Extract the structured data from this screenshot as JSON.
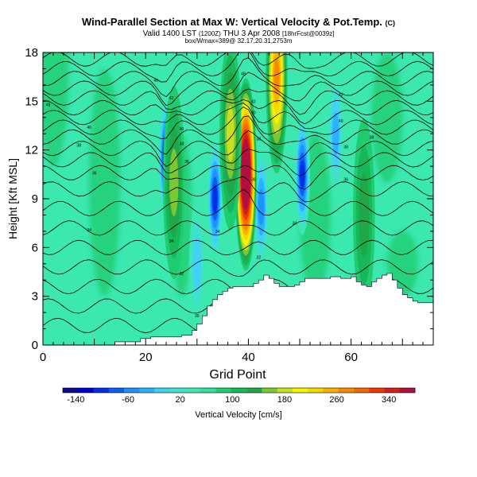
{
  "title": {
    "main": "Wind-Parallel Section at Max W: Vertical Velocity & Pot.Temp.",
    "copyright": "(C)",
    "valid": "Valid 1400 LST",
    "valid_utc": "(1200Z)",
    "date": "THU 3 Apr 2008",
    "forecast": "[18hrFcst@0039z]",
    "line3": "box/Wmax=389@ 32.17,20.31,2753m"
  },
  "chart_data": {
    "type": "heatmap",
    "xlabel": "Grid Point",
    "ylabel": "Height [Kft MSL]",
    "xlim": [
      0,
      76
    ],
    "ylim": [
      0,
      18
    ],
    "xticks": [
      0,
      20,
      40,
      60
    ],
    "yticks": [
      0,
      3,
      6,
      9,
      12,
      15,
      18
    ],
    "colorbar": {
      "label": "Vertical Velocity [cm/s]",
      "range": [
        -160,
        380
      ],
      "tick_values": [
        -140,
        -60,
        20,
        100,
        180,
        260,
        340
      ],
      "colors": [
        "#0b0b8f",
        "#0000cd",
        "#0030e6",
        "#0a60f2",
        "#1e90ff",
        "#29b3ff",
        "#3fd2f5",
        "#40e0d0",
        "#3ae8b0",
        "#2fe294",
        "#20cc70",
        "#16b85a",
        "#20a848",
        "#7cc830",
        "#c8e020",
        "#f5f500",
        "#f5d800",
        "#f5b000",
        "#f58a00",
        "#f56800",
        "#ee3a00",
        "#d41e1e",
        "#b01040"
      ],
      "step": 20
    },
    "terrain_top_kft": [
      [
        0,
        0
      ],
      [
        13,
        0
      ],
      [
        14,
        0.2
      ],
      [
        18,
        0.2
      ],
      [
        19,
        0.4
      ],
      [
        21,
        0.5
      ],
      [
        25,
        0.5
      ],
      [
        27,
        0.6
      ],
      [
        29,
        0.9
      ],
      [
        30,
        1.3
      ],
      [
        31,
        1.8
      ],
      [
        32,
        2.4
      ],
      [
        33,
        2.8
      ],
      [
        34,
        3.1
      ],
      [
        35,
        3.3
      ],
      [
        36,
        3.5
      ],
      [
        37,
        3.6
      ],
      [
        40,
        3.6
      ],
      [
        41,
        3.8
      ],
      [
        42,
        4.0
      ],
      [
        43,
        4.3
      ],
      [
        44,
        4.1
      ],
      [
        45,
        3.8
      ],
      [
        46,
        3.6
      ],
      [
        49,
        3.7
      ],
      [
        50,
        3.9
      ],
      [
        51,
        4.1
      ],
      [
        56,
        4.2
      ],
      [
        58,
        4.1
      ],
      [
        60,
        4.2
      ],
      [
        61,
        3.9
      ],
      [
        62,
        3.7
      ],
      [
        63,
        3.6
      ],
      [
        64,
        3.9
      ],
      [
        65,
        4.1
      ],
      [
        66,
        4.3
      ],
      [
        67,
        4.4
      ],
      [
        68,
        4.0
      ],
      [
        69,
        3.5
      ],
      [
        70,
        3.1
      ],
      [
        71,
        2.9
      ],
      [
        72,
        2.7
      ],
      [
        73,
        2.6
      ],
      [
        75,
        2.6
      ]
    ],
    "updraft_cores": [
      {
        "x": 39.5,
        "z_kft": 10.5,
        "w": 380
      },
      {
        "x": 45.5,
        "z_kft": 16.5,
        "w": 200
      },
      {
        "x": 36.5,
        "z_kft": 13.0,
        "w": 120
      },
      {
        "x": 25.5,
        "z_kft": 10.0,
        "w": 110
      },
      {
        "x": 62.5,
        "z_kft": 8.0,
        "w": 90
      }
    ],
    "downdraft_cores": [
      {
        "x": 24.0,
        "z_kft": 11.5,
        "w": -140
      },
      {
        "x": 33.5,
        "z_kft": 9.0,
        "w": -120
      },
      {
        "x": 50.5,
        "z_kft": 10.5,
        "w": -130
      },
      {
        "x": 42.5,
        "z_kft": 8.5,
        "w": -80
      },
      {
        "x": 57.0,
        "z_kft": 13.0,
        "w": -60
      },
      {
        "x": 30.0,
        "z_kft": 5.0,
        "w": -50
      }
    ],
    "theta_contour_labels": [
      {
        "x": 1.0,
        "z_kft": 14.8,
        "text": "48"
      },
      {
        "x": 22.0,
        "z_kft": 16.3,
        "text": "45"
      },
      {
        "x": 25.0,
        "z_kft": 15.2,
        "text": "42"
      },
      {
        "x": 9.0,
        "z_kft": 13.4,
        "text": "40"
      },
      {
        "x": 7.0,
        "z_kft": 12.3,
        "text": "38"
      },
      {
        "x": 10.0,
        "z_kft": 10.6,
        "text": "36"
      },
      {
        "x": 27.0,
        "z_kft": 13.3,
        "text": "40"
      },
      {
        "x": 27.0,
        "z_kft": 12.4,
        "text": "38"
      },
      {
        "x": 28.0,
        "z_kft": 11.3,
        "text": "36"
      },
      {
        "x": 9.0,
        "z_kft": 7.1,
        "text": "34"
      },
      {
        "x": 25.0,
        "z_kft": 6.4,
        "text": "34"
      },
      {
        "x": 27.0,
        "z_kft": 4.4,
        "text": "32"
      },
      {
        "x": 30.0,
        "z_kft": 1.8,
        "text": "30"
      },
      {
        "x": 34.0,
        "z_kft": 7.0,
        "text": "34"
      },
      {
        "x": 39.0,
        "z_kft": 16.7,
        "text": "48"
      },
      {
        "x": 41.0,
        "z_kft": 15.0,
        "text": "42"
      },
      {
        "x": 41.0,
        "z_kft": 14.3,
        "text": "40"
      },
      {
        "x": 42.0,
        "z_kft": 12.7,
        "text": "38"
      },
      {
        "x": 41.0,
        "z_kft": 10.2,
        "text": "36"
      },
      {
        "x": 49.0,
        "z_kft": 7.5,
        "text": "34"
      },
      {
        "x": 42.0,
        "z_kft": 5.4,
        "text": "32"
      },
      {
        "x": 58.0,
        "z_kft": 13.8,
        "text": "40"
      },
      {
        "x": 59.0,
        "z_kft": 12.2,
        "text": "38"
      },
      {
        "x": 59.0,
        "z_kft": 10.2,
        "text": "36"
      },
      {
        "x": 58.0,
        "z_kft": 15.4,
        "text": "42"
      },
      {
        "x": 64.0,
        "z_kft": 12.8,
        "text": "38"
      }
    ]
  }
}
